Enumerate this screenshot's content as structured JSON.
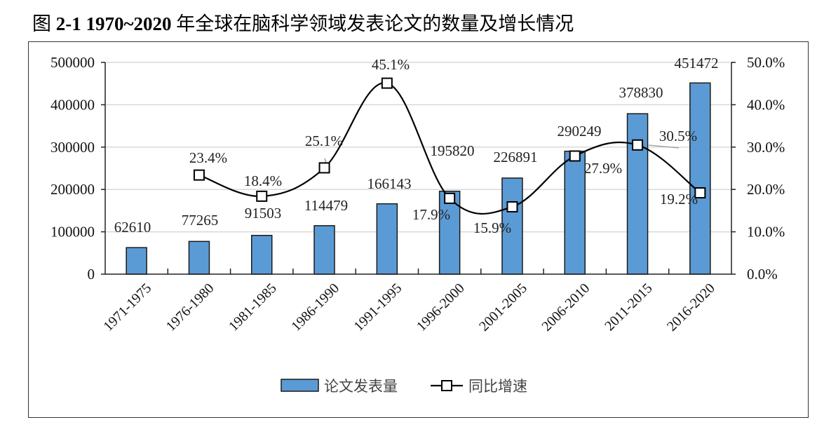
{
  "title": {
    "prefix": "图 ",
    "number": "2-1 1970~2020",
    "text": " 年全球在脑科学领域发表论文的数量及增长情况"
  },
  "chart_data": {
    "type": "bar",
    "title": "图 2-1 1970~2020 年全球在脑科学领域发表论文的数量及增长情况",
    "categories": [
      "1971-1975",
      "1976-1980",
      "1981-1985",
      "1986-1990",
      "1991-1995",
      "1996-2000",
      "2001-2005",
      "2006-2010",
      "2011-2015",
      "2016-2020"
    ],
    "series": [
      {
        "name": "论文发表量",
        "type": "bar",
        "axis": "left",
        "color": "#5b9bd5",
        "values": [
          62610,
          77265,
          91503,
          114479,
          166143,
          195820,
          226891,
          290249,
          378830,
          451472
        ],
        "labels": [
          "62610",
          "77265",
          "91503",
          "114479",
          "166143",
          "195820",
          "226891",
          "290249",
          "378830",
          "451472"
        ]
      },
      {
        "name": "同比增速",
        "type": "line",
        "axis": "right",
        "color": "#000000",
        "marker": "hollow-square",
        "values": [
          null,
          23.4,
          18.4,
          25.1,
          45.1,
          17.9,
          15.9,
          27.9,
          30.5,
          19.2
        ],
        "labels": [
          "",
          "23.4%",
          "18.4%",
          "25.1%",
          "45.1%",
          "17.9%",
          "15.9%",
          "27.9%",
          "30.5%",
          "19.2%"
        ]
      }
    ],
    "ylim": [
      0,
      500000
    ],
    "y_ticks": [
      "0",
      "100000",
      "200000",
      "300000",
      "400000",
      "500000"
    ],
    "y2lim": [
      0,
      50
    ],
    "y2_ticks": [
      "0.0%",
      "10.0%",
      "20.0%",
      "30.0%",
      "40.0%",
      "50.0%"
    ],
    "xlabel": "",
    "ylabel": "",
    "y2label": "",
    "grid": true,
    "legend_position": "bottom",
    "legend": [
      "论文发表量",
      "同比增速"
    ]
  }
}
